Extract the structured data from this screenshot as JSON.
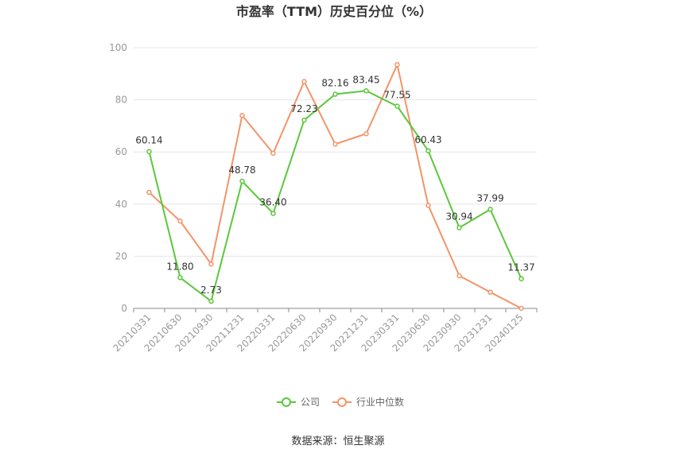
{
  "chart_data": {
    "type": "line",
    "title": "市盈率（TTM）历史百分位（%）",
    "categories": [
      "20210331",
      "20210630",
      "20210930",
      "20211231",
      "20220331",
      "20220630",
      "20220930",
      "20221231",
      "20230331",
      "20230630",
      "20230930",
      "20231231",
      "20240125"
    ],
    "ylim": [
      0,
      100
    ],
    "yticks": [
      0,
      20,
      40,
      60,
      80,
      100
    ],
    "grid": true,
    "legend_position": "bottom",
    "series": [
      {
        "name": "公司",
        "color": "#5ac83a",
        "values": [
          60.14,
          11.8,
          2.73,
          48.78,
          36.4,
          72.23,
          82.16,
          83.45,
          77.55,
          60.43,
          30.94,
          37.99,
          11.37
        ],
        "labels": [
          "60.14",
          "11.80",
          "2.73",
          "48.78",
          "36.40",
          "72.23",
          "82.16",
          "83.45",
          "77.55",
          "60.43",
          "30.94",
          "37.99",
          "11.37"
        ]
      },
      {
        "name": "行业中位数",
        "color": "#f39468",
        "values": [
          44.5,
          33.5,
          17.0,
          74.0,
          59.5,
          87.0,
          63.0,
          67.0,
          93.5,
          39.5,
          12.5,
          6.2,
          0.0
        ]
      }
    ]
  },
  "source": "数据来源：恒生聚源"
}
